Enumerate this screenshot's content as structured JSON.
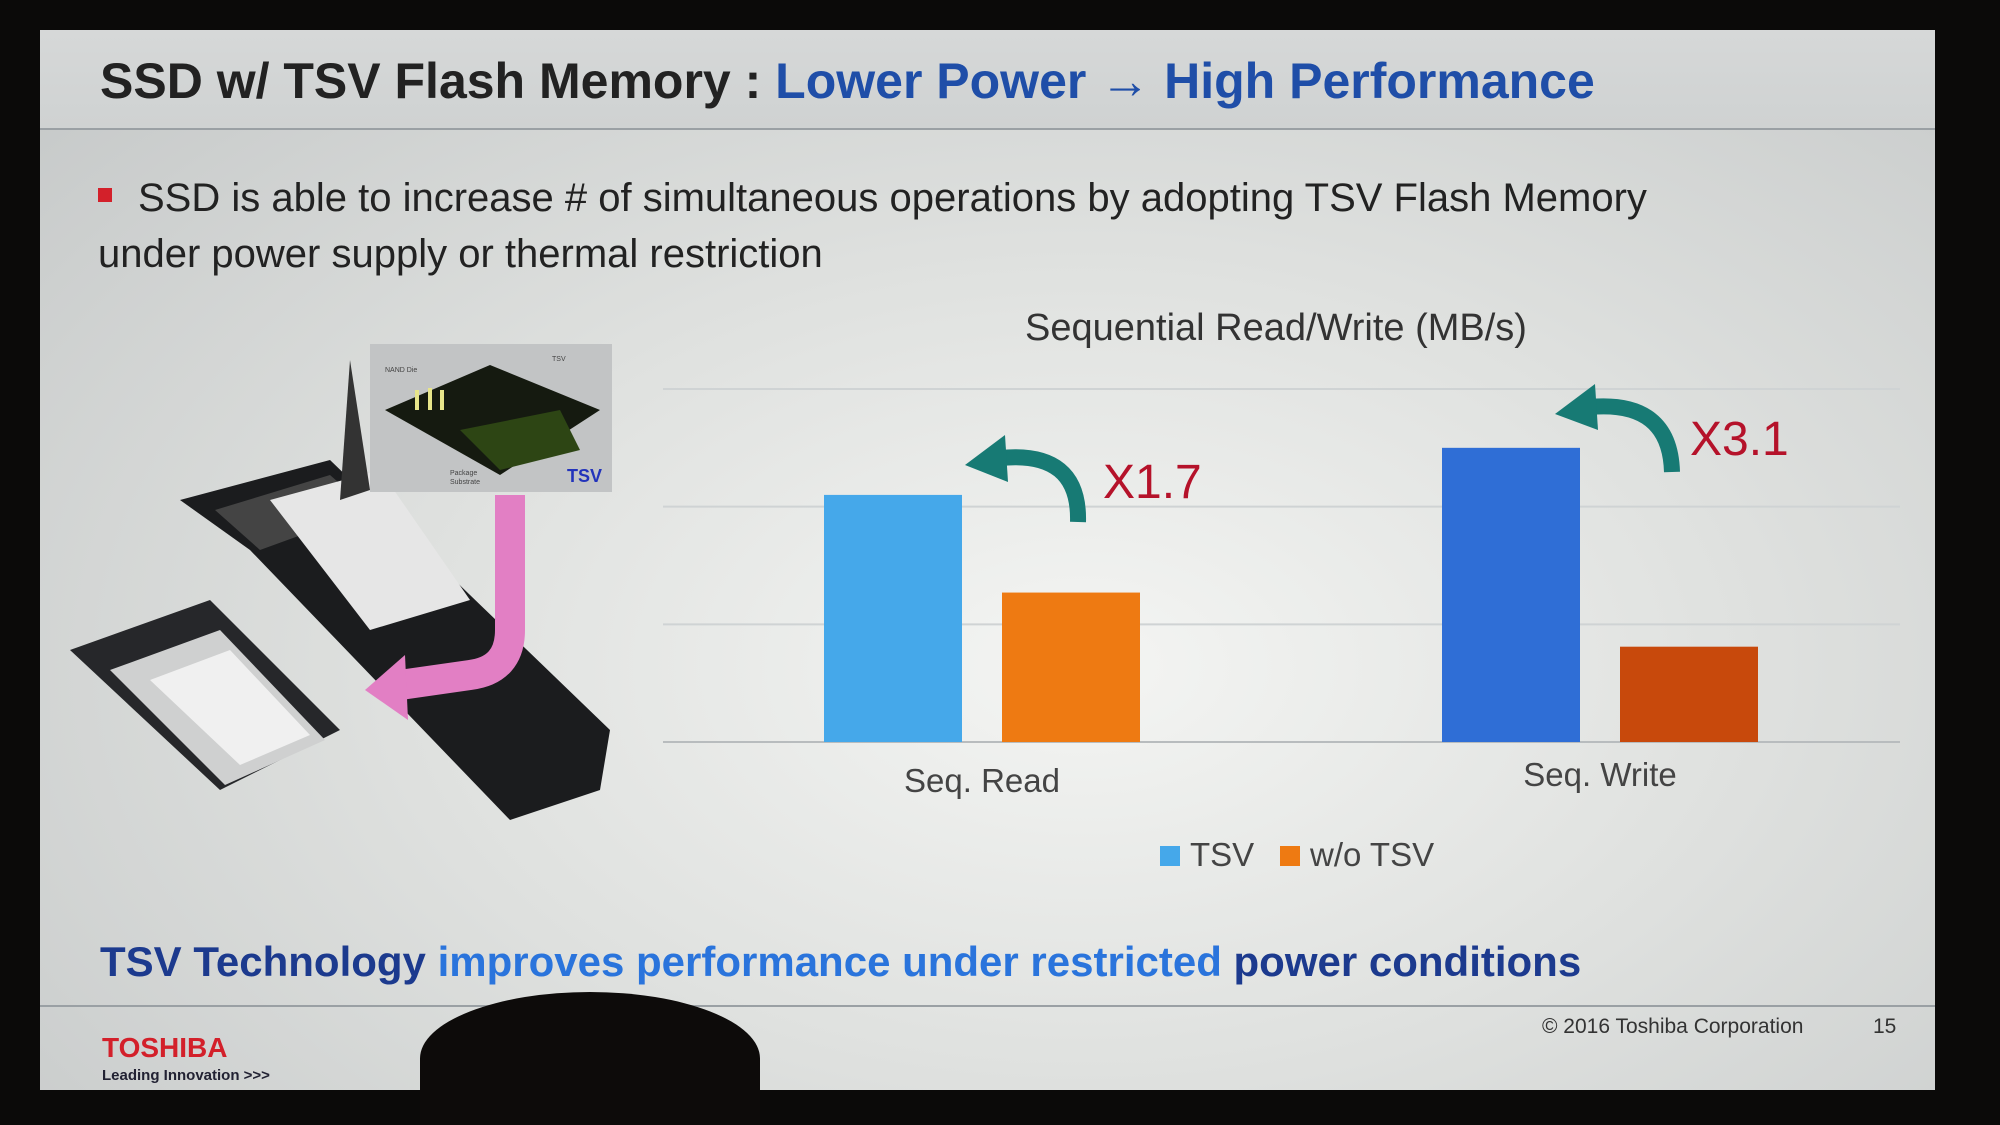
{
  "slide": {
    "title_part1": "SSD w/ TSV Flash Memory : ",
    "title_part2": "Lower Power → High Performance",
    "bullet_line1": "SSD is able to increase # of simultaneous operations by adopting TSV Flash Memory",
    "bullet_line2": "under power supply or thermal restriction",
    "inset": {
      "label_nand": "NAND Die",
      "label_tsv_small": "TSV",
      "label_pkg1": "Package",
      "label_pkg2": "Substrate",
      "label_tsv": "TSV"
    },
    "tagline_part1": "TSV Technology ",
    "tagline_part2": "improves performance under restricted ",
    "tagline_part3": "power conditions",
    "logo": "TOSHIBA",
    "slogan": "Leading Innovation >>>",
    "copyright": "© 2016 Toshiba Corporation",
    "page_number": "15"
  },
  "colors": {
    "tsv_read": "#45a8ea",
    "tsv_write": "#2f6ed6",
    "wo_read": "#ee7a12",
    "wo_write": "#c8490c",
    "annotation": "#b5122a",
    "arrow": "#177a74",
    "title_blue": "#1f4ea8"
  },
  "chart_data": {
    "type": "bar",
    "title": "Sequential Read/Write (MB/s)",
    "categories": [
      "Seq. Read",
      "Seq. Write"
    ],
    "series": [
      {
        "name": "TSV",
        "values": [
          2.1,
          2.5
        ]
      },
      {
        "name": "w/o TSV",
        "values": [
          1.27,
          0.81
        ]
      }
    ],
    "ylim": [
      0,
      3
    ],
    "grid": true,
    "legend": "bottom",
    "annotations": [
      "X1.7",
      "X3.1"
    ]
  }
}
